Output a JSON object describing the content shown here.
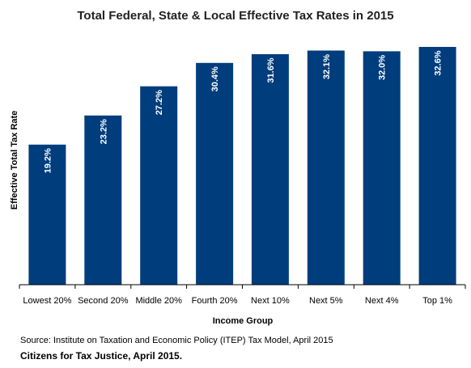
{
  "chart_data": {
    "type": "bar",
    "title": "Total Federal, State & Local Effective Tax Rates in 2015",
    "xlabel": "Income Group",
    "ylabel": "Effective Total Tax Rate",
    "categories": [
      "Lowest 20%",
      "Second 20%",
      "Middle 20%",
      "Fourth 20%",
      "Next 10%",
      "Next 5%",
      "Next 4%",
      "Top 1%"
    ],
    "values": [
      19.2,
      23.2,
      27.2,
      30.4,
      31.6,
      32.1,
      32.0,
      32.6
    ],
    "data_labels": [
      "19.2%",
      "23.2%",
      "27.2%",
      "30.4%",
      "31.6%",
      "32.1%",
      "32.0%",
      "32.6%"
    ],
    "ylim": [
      0,
      32.6
    ],
    "grid": false,
    "legend": "none",
    "colors": {
      "bar": "#003d7d",
      "axis": "#000000"
    }
  },
  "notes": {
    "source": "Source: Institute on Taxation and Economic Policy (ITEP) Tax Model, April 2015",
    "credit": "Citizens for Tax Justice, April 2015."
  }
}
